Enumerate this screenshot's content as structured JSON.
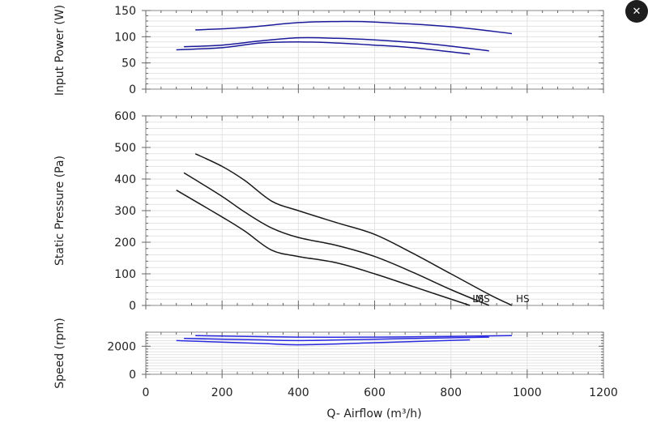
{
  "close_button": {
    "glyph": "✕"
  },
  "x_axis": {
    "label": "Q- Airflow (m³/h)",
    "lim": [
      0,
      1200
    ],
    "ticks": [
      0,
      200,
      400,
      600,
      800,
      1000,
      1200
    ]
  },
  "chart_data": [
    {
      "type": "line",
      "ylabel": "Input Power (W)",
      "xlim": [
        0,
        1200
      ],
      "ylim": [
        0,
        150
      ],
      "yticks": [
        0,
        50,
        100,
        150
      ],
      "grid": true,
      "color": "#1a1a9a",
      "series": [
        {
          "x": [
            130,
            250,
            400,
            500,
            600,
            800,
            960
          ],
          "y": [
            113,
            117,
            127,
            129,
            128,
            119,
            106
          ]
        },
        {
          "x": [
            100,
            200,
            300,
            400,
            500,
            600,
            700,
            800,
            900
          ],
          "y": [
            81,
            84,
            92,
            98,
            97,
            94,
            89,
            82,
            73
          ]
        },
        {
          "x": [
            80,
            200,
            300,
            400,
            500,
            600,
            700,
            850
          ],
          "y": [
            75,
            79,
            88,
            90,
            88,
            84,
            79,
            67
          ]
        }
      ]
    },
    {
      "type": "line",
      "ylabel": "Static Pressure (Pa)",
      "xlim": [
        0,
        1200
      ],
      "ylim": [
        0,
        600
      ],
      "yticks": [
        0,
        100,
        200,
        300,
        400,
        500,
        600
      ],
      "grid": true,
      "color": "#1a1a1a",
      "series": [
        {
          "name": "HS",
          "x": [
            130,
            200,
            260,
            330,
            400,
            500,
            600,
            700,
            800,
            900,
            960
          ],
          "y": [
            480,
            440,
            395,
            330,
            300,
            262,
            225,
            165,
            100,
            35,
            0
          ]
        },
        {
          "name": "MS",
          "x": [
            100,
            200,
            260,
            330,
            400,
            500,
            600,
            700,
            800,
            900
          ],
          "y": [
            420,
            345,
            295,
            245,
            215,
            190,
            155,
            105,
            50,
            0
          ]
        },
        {
          "name": "LS",
          "x": [
            80,
            200,
            260,
            330,
            400,
            500,
            600,
            700,
            850
          ],
          "y": [
            365,
            280,
            235,
            175,
            155,
            135,
            100,
            60,
            0
          ]
        }
      ]
    },
    {
      "type": "line",
      "ylabel": "Speed (rpm)",
      "xlim": [
        0,
        1200
      ],
      "ylim": [
        0,
        3000
      ],
      "yticks": [
        0,
        2000
      ],
      "grid": true,
      "color": "#2a2ae0",
      "series": [
        {
          "x": [
            130,
            400,
            600,
            800,
            960
          ],
          "y": [
            2750,
            2650,
            2650,
            2700,
            2750
          ]
        },
        {
          "x": [
            100,
            300,
            400,
            600,
            900
          ],
          "y": [
            2550,
            2450,
            2400,
            2500,
            2650
          ]
        },
        {
          "x": [
            80,
            300,
            400,
            600,
            850
          ],
          "y": [
            2400,
            2200,
            2100,
            2250,
            2450
          ]
        }
      ]
    }
  ]
}
